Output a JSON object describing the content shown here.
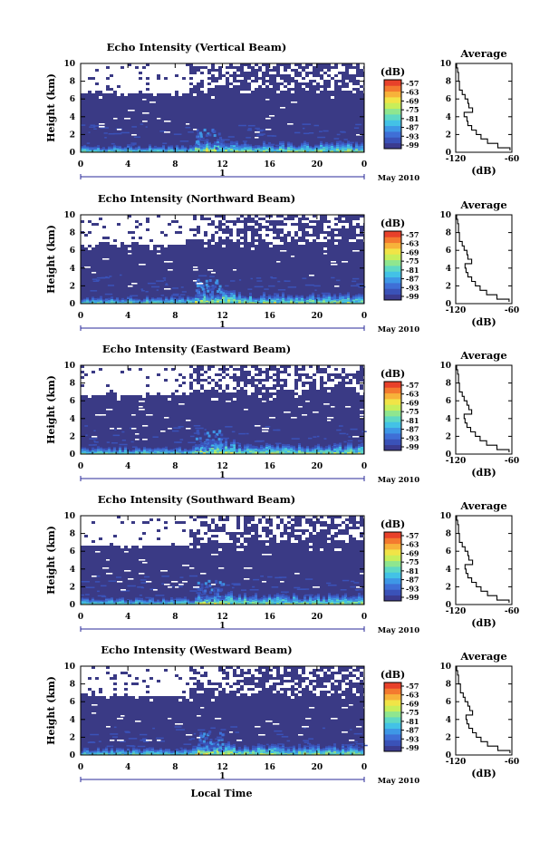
{
  "figure": {
    "xlabel": "Local Time",
    "date_label": "May 2010",
    "day_label": "1"
  },
  "colorbar": {
    "unit": "(dB)",
    "ticks": [
      "-57",
      "-63",
      "-69",
      "-75",
      "-81",
      "-87",
      "-93",
      "-99"
    ],
    "colors": [
      "#3b3b8f",
      "#3a52b8",
      "#3f6fd6",
      "#3e97e6",
      "#43c2e6",
      "#5fd9c4",
      "#8fe68f",
      "#c8ee5a",
      "#f1e447",
      "#f7b23a",
      "#f47a2f",
      "#e8412a"
    ]
  },
  "chart_data": [
    {
      "type": "heatmap",
      "title": "Echo Intensity (Vertical Beam)",
      "ylabel": "Height (km)",
      "x_ticks": [
        "0",
        "4",
        "8",
        "12",
        "16",
        "20",
        "0"
      ],
      "y_ticks": [
        "0",
        "2",
        "4",
        "6",
        "8",
        "10"
      ],
      "xlim": [
        0,
        24
      ],
      "ylim": [
        0,
        10
      ],
      "clim": [
        -99,
        -57
      ],
      "background_color": "#3a3a85",
      "missing_region": "white gaps mostly above 6.5 km, especially 0–9 LT",
      "profile": {
        "title": "Average",
        "xlabel": "(dB)",
        "x_ticks": [
          "-120",
          "-60"
        ],
        "y_ticks": [
          "0",
          "2",
          "4",
          "6",
          "8",
          "10"
        ],
        "xlim": [
          -120,
          -60
        ],
        "ylim": [
          0,
          10
        ],
        "height": [
          0.2,
          0.5,
          1.0,
          1.5,
          2.0,
          2.5,
          3.0,
          3.5,
          4.0,
          4.5,
          5.0,
          5.5,
          6.0,
          6.5,
          7.0,
          8.0,
          9.0,
          9.5,
          10.0
        ],
        "value": [
          -62,
          -75,
          -86,
          -93,
          -98,
          -103,
          -107,
          -108,
          -111,
          -102,
          -106,
          -107,
          -110,
          -113,
          -116,
          -117,
          -118,
          -119,
          -118
        ]
      }
    },
    {
      "type": "heatmap",
      "title": "Echo Intensity (Northward Beam)",
      "ylabel": "Height (km)",
      "x_ticks": [
        "0",
        "4",
        "8",
        "12",
        "16",
        "20",
        "0"
      ],
      "y_ticks": [
        "0",
        "2",
        "4",
        "6",
        "8",
        "10"
      ],
      "xlim": [
        0,
        24
      ],
      "ylim": [
        0,
        10
      ],
      "clim": [
        -99,
        -57
      ],
      "background_color": "#3a3a85",
      "missing_region": "white gaps mostly above 6.5 km, especially 0–9 LT",
      "profile": {
        "title": "Average",
        "xlabel": "(dB)",
        "x_ticks": [
          "-120",
          "-60"
        ],
        "y_ticks": [
          "0",
          "2",
          "4",
          "6",
          "8",
          "10"
        ],
        "xlim": [
          -120,
          -60
        ],
        "ylim": [
          0,
          10
        ],
        "height": [
          0.2,
          0.5,
          1.0,
          1.5,
          2.0,
          2.5,
          3.0,
          3.5,
          4.0,
          4.5,
          5.0,
          5.5,
          6.0,
          6.5,
          7.0,
          8.0,
          9.0,
          9.5,
          10.0
        ],
        "value": [
          -63,
          -76,
          -87,
          -94,
          -99,
          -103,
          -107,
          -109,
          -110,
          -103,
          -107,
          -108,
          -111,
          -113,
          -116,
          -117,
          -118,
          -119,
          -118
        ]
      }
    },
    {
      "type": "heatmap",
      "title": "Echo Intensity (Eastward Beam)",
      "ylabel": "Height (km)",
      "x_ticks": [
        "0",
        "4",
        "8",
        "12",
        "16",
        "20",
        "0"
      ],
      "y_ticks": [
        "0",
        "2",
        "4",
        "6",
        "8",
        "10"
      ],
      "xlim": [
        0,
        24
      ],
      "ylim": [
        0,
        10
      ],
      "clim": [
        -99,
        -57
      ],
      "background_color": "#3a3a85",
      "missing_region": "white gaps mostly above 6.5 km, especially 0–9 LT",
      "profile": {
        "title": "Average",
        "xlabel": "(dB)",
        "x_ticks": [
          "-120",
          "-60"
        ],
        "y_ticks": [
          "0",
          "2",
          "4",
          "6",
          "8",
          "10"
        ],
        "xlim": [
          -120,
          -60
        ],
        "ylim": [
          0,
          10
        ],
        "height": [
          0.2,
          0.5,
          1.0,
          1.5,
          2.0,
          2.5,
          3.0,
          3.5,
          4.0,
          4.5,
          5.0,
          5.5,
          6.0,
          6.5,
          7.0,
          8.0,
          9.0,
          9.5,
          10.0
        ],
        "value": [
          -63,
          -76,
          -87,
          -94,
          -99,
          -104,
          -108,
          -110,
          -111,
          -103,
          -106,
          -108,
          -111,
          -113,
          -116,
          -117,
          -118,
          -119,
          -118
        ]
      }
    },
    {
      "type": "heatmap",
      "title": "Echo Intensity (Southward Beam)",
      "ylabel": "Height (km)",
      "x_ticks": [
        "0",
        "4",
        "8",
        "12",
        "16",
        "20",
        "0"
      ],
      "y_ticks": [
        "0",
        "2",
        "4",
        "6",
        "8",
        "10"
      ],
      "xlim": [
        0,
        24
      ],
      "ylim": [
        0,
        10
      ],
      "clim": [
        -99,
        -57
      ],
      "background_color": "#3a3a85",
      "missing_region": "white gaps mostly above 6.5 km, especially 0–9 LT",
      "profile": {
        "title": "Average",
        "xlabel": "(dB)",
        "x_ticks": [
          "-120",
          "-60"
        ],
        "y_ticks": [
          "0",
          "2",
          "4",
          "6",
          "8",
          "10"
        ],
        "xlim": [
          -120,
          -60
        ],
        "ylim": [
          0,
          10
        ],
        "height": [
          0.2,
          0.5,
          1.0,
          1.5,
          2.0,
          2.5,
          3.0,
          3.5,
          4.0,
          4.5,
          5.0,
          5.5,
          6.0,
          6.5,
          7.0,
          8.0,
          9.0,
          9.5,
          10.0
        ],
        "value": [
          -63,
          -76,
          -86,
          -93,
          -98,
          -103,
          -107,
          -109,
          -110,
          -102,
          -106,
          -107,
          -110,
          -113,
          -116,
          -117,
          -118,
          -119,
          -118
        ]
      }
    },
    {
      "type": "heatmap",
      "title": "Echo Intensity (Westward Beam)",
      "ylabel": "Height (km)",
      "x_ticks": [
        "0",
        "4",
        "8",
        "12",
        "16",
        "20",
        "0"
      ],
      "y_ticks": [
        "0",
        "2",
        "4",
        "6",
        "8",
        "10"
      ],
      "xlim": [
        0,
        24
      ],
      "ylim": [
        0,
        10
      ],
      "clim": [
        -99,
        -57
      ],
      "background_color": "#3a3a85",
      "missing_region": "white gaps mostly above 6.5 km, especially 0–9 LT",
      "profile": {
        "title": "Average",
        "xlabel": "(dB)",
        "x_ticks": [
          "-120",
          "-60"
        ],
        "y_ticks": [
          "0",
          "2",
          "4",
          "6",
          "8",
          "10"
        ],
        "xlim": [
          -120,
          -60
        ],
        "ylim": [
          0,
          10
        ],
        "height": [
          0.2,
          0.5,
          1.0,
          1.5,
          2.0,
          2.5,
          3.0,
          3.5,
          4.0,
          4.5,
          5.0,
          5.5,
          6.0,
          6.5,
          7.0,
          8.0,
          9.0,
          9.5,
          10.0
        ],
        "value": [
          -62,
          -75,
          -86,
          -93,
          -98,
          -102,
          -106,
          -108,
          -109,
          -102,
          -105,
          -107,
          -110,
          -112,
          -115,
          -117,
          -118,
          -119,
          -118
        ]
      }
    }
  ]
}
